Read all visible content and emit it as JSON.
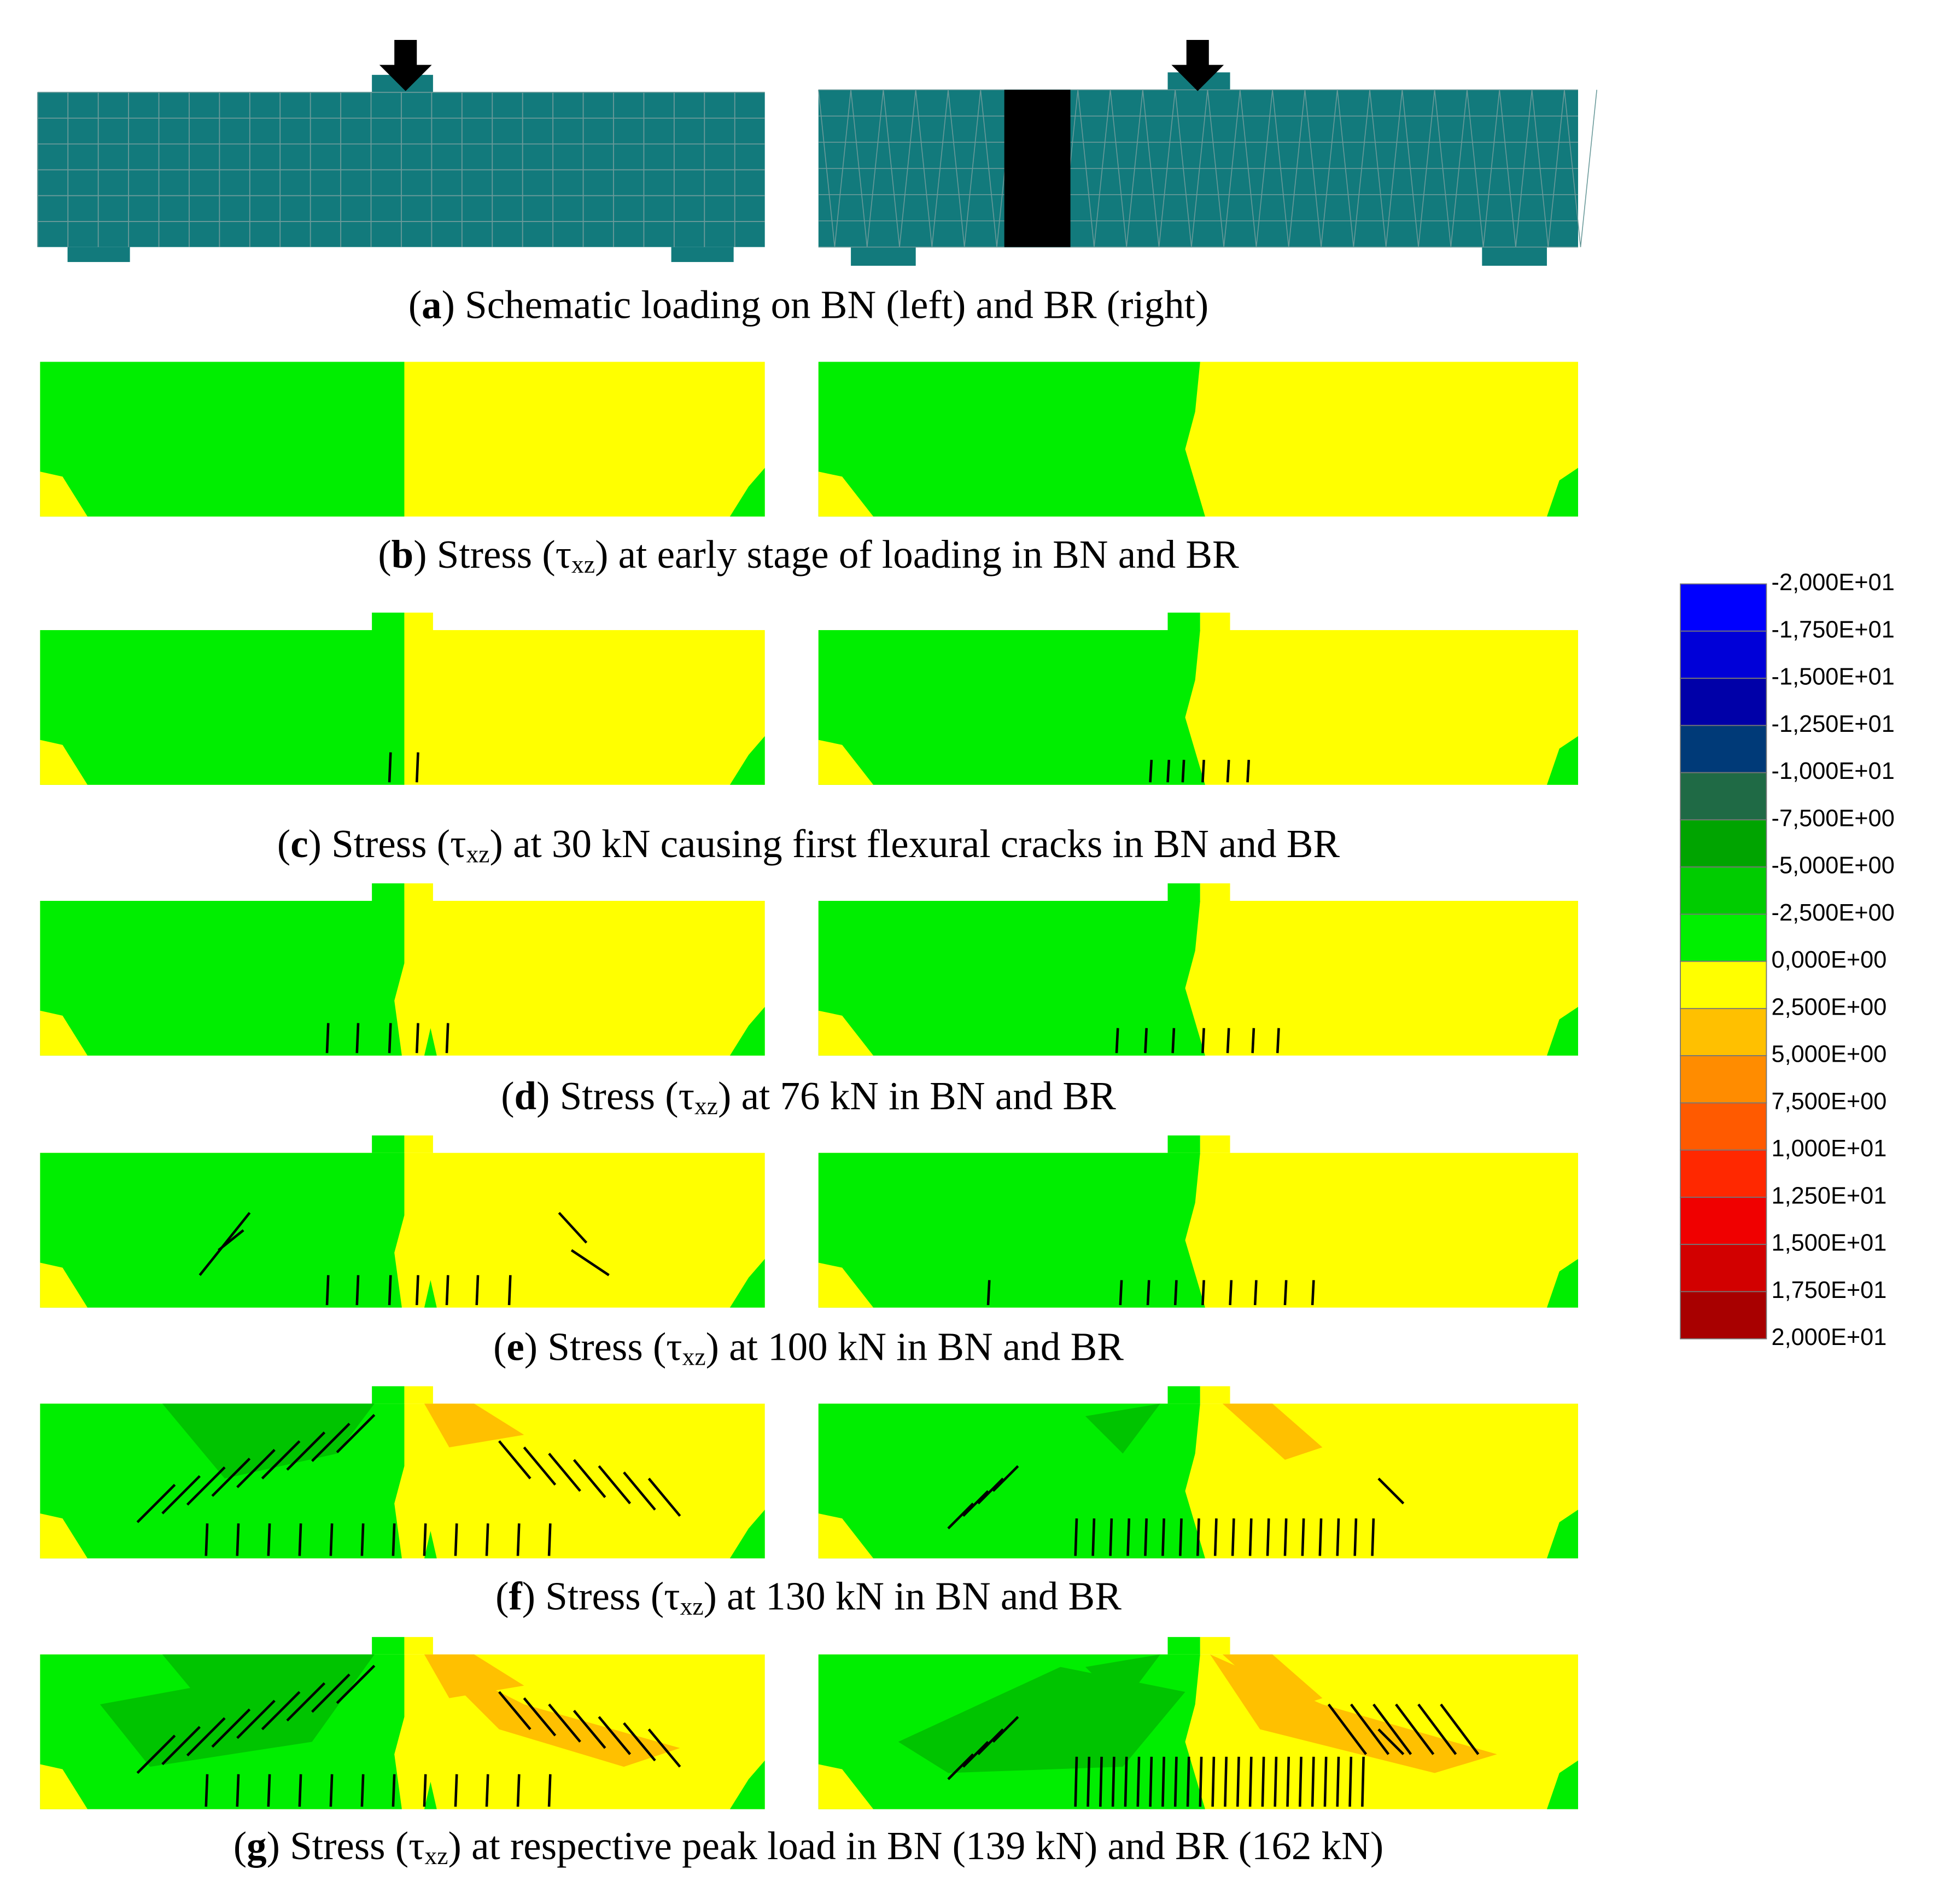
{
  "panels": [
    {
      "caption": [
        {
          "text": "(",
          "style": "normal"
        },
        {
          "text": "a",
          "style": "bold"
        },
        {
          "text": ") Schematic loading on BN (left) and BR (right)",
          "style": "normal"
        }
      ]
    },
    {
      "caption": [
        {
          "text": "(",
          "style": "normal"
        },
        {
          "text": "b",
          "style": "bold"
        },
        {
          "text": ") Stress (τ",
          "style": "normal"
        },
        {
          "text": "xz",
          "style": "sub"
        },
        {
          "text": ") at early stage of loading in BN and BR",
          "style": "normal"
        }
      ]
    },
    {
      "caption": [
        {
          "text": "(",
          "style": "normal"
        },
        {
          "text": "c",
          "style": "bold"
        },
        {
          "text": ") Stress (τ",
          "style": "normal"
        },
        {
          "text": "xz",
          "style": "sub"
        },
        {
          "text": ") at 30 kN causing first flexural cracks in BN and BR",
          "style": "normal"
        }
      ]
    },
    {
      "caption": [
        {
          "text": "(",
          "style": "normal"
        },
        {
          "text": "d",
          "style": "bold"
        },
        {
          "text": ") Stress (τ",
          "style": "normal"
        },
        {
          "text": "xz",
          "style": "sub"
        },
        {
          "text": ") at 76 kN in BN and BR",
          "style": "normal"
        }
      ]
    },
    {
      "caption": [
        {
          "text": "(",
          "style": "normal"
        },
        {
          "text": "e",
          "style": "bold"
        },
        {
          "text": ") Stress (τ",
          "style": "normal"
        },
        {
          "text": "xz",
          "style": "sub"
        },
        {
          "text": ") at 100 kN in BN and BR",
          "style": "normal"
        }
      ]
    },
    {
      "caption": [
        {
          "text": "(",
          "style": "normal"
        },
        {
          "text": "f",
          "style": "bold"
        },
        {
          "text": ") Stress (τ",
          "style": "normal"
        },
        {
          "text": "xz",
          "style": "sub"
        },
        {
          "text": ") at 130 kN in BN and BR",
          "style": "normal"
        }
      ]
    },
    {
      "caption": [
        {
          "text": "(",
          "style": "normal"
        },
        {
          "text": "g",
          "style": "bold"
        },
        {
          "text": ") Stress (τ",
          "style": "normal"
        },
        {
          "text": "xz",
          "style": "sub"
        },
        {
          "text": ") at respective peak load in BN (139 kN) and BR (162 kN)",
          "style": "normal"
        }
      ]
    }
  ],
  "legend": {
    "labels": [
      "-2,000E+01",
      "-1,750E+01",
      "-1,500E+01",
      "-1,250E+01",
      "-1,000E+01",
      "-7,500E+00",
      "-5,000E+00",
      "-2,500E+00",
      "0,000E+00",
      "2,500E+00",
      "5,000E+00",
      "7,500E+00",
      "1,000E+01",
      "1,250E+01",
      "1,500E+01",
      "1,750E+01",
      "2,000E+01"
    ],
    "colors": [
      "#0000ff",
      "#0000d8",
      "#0000a8",
      "#003a78",
      "#1f6a45",
      "#00a400",
      "#00cc00",
      "#00f000",
      "#ffff00",
      "#ffc000",
      "#ff8c00",
      "#ff5a00",
      "#ff2800",
      "#f00000",
      "#d20000",
      "#a80000"
    ]
  }
}
